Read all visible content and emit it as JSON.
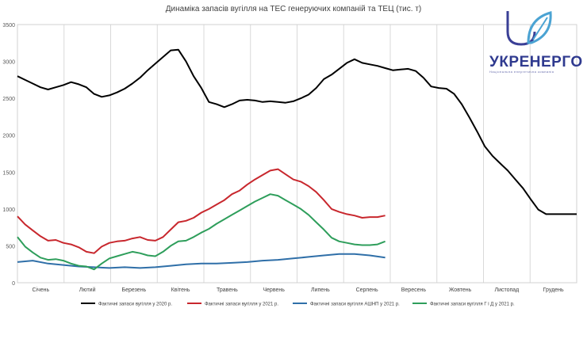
{
  "logo": {
    "brand": "УКРЕНЕРГО",
    "tagline": "Національна енергетична компанія"
  },
  "chart_data": {
    "type": "line",
    "title": "Динаміка запасів вугілля на ТЕС генеруючих компаній та ТЕЦ (тис. т)",
    "xlabel": "",
    "ylabel": "",
    "ylim": [
      0,
      3500
    ],
    "yticks": [
      0,
      500,
      1000,
      1500,
      2000,
      2500,
      3000,
      3500
    ],
    "xlim": [
      0,
      365
    ],
    "categories": [
      "Січень",
      "Лютий",
      "Березень",
      "Квітень",
      "Травень",
      "Червень",
      "Липень",
      "Серпень",
      "Вересень",
      "Жовтень",
      "Листопад",
      "Грудень"
    ],
    "legend_position": "bottom",
    "grid": "vertical",
    "series": [
      {
        "name": "Фактичні запаси вугілля у 2020 р.",
        "color": "#000000",
        "x": [
          0,
          5,
          10,
          15,
          20,
          25,
          30,
          35,
          40,
          45,
          50,
          55,
          60,
          65,
          70,
          75,
          80,
          85,
          90,
          95,
          100,
          105,
          110,
          115,
          120,
          125,
          130,
          135,
          140,
          145,
          150,
          155,
          160,
          165,
          170,
          175,
          180,
          185,
          190,
          195,
          200,
          205,
          210,
          215,
          220,
          225,
          230,
          235,
          240,
          245,
          250,
          255,
          260,
          265,
          270,
          275,
          280,
          285,
          290,
          295,
          300,
          305,
          310,
          315,
          320,
          325,
          330,
          335,
          340,
          345,
          350,
          355,
          360,
          365
        ],
        "values": [
          2800,
          2750,
          2700,
          2650,
          2620,
          2650,
          2680,
          2720,
          2690,
          2650,
          2560,
          2520,
          2540,
          2580,
          2630,
          2700,
          2780,
          2880,
          2970,
          3060,
          3150,
          3160,
          3000,
          2800,
          2640,
          2450,
          2420,
          2380,
          2420,
          2470,
          2480,
          2470,
          2450,
          2460,
          2450,
          2440,
          2460,
          2500,
          2550,
          2640,
          2760,
          2820,
          2900,
          2980,
          3030,
          2980,
          2960,
          2940,
          2910,
          2880,
          2890,
          2900,
          2870,
          2780,
          2660,
          2640,
          2630,
          2560,
          2420,
          2240,
          2050,
          1850,
          1720,
          1620,
          1520,
          1400,
          1280,
          1130,
          990,
          930,
          930,
          930,
          930,
          930
        ]
      },
      {
        "name": "Фактичні запаси вугілля у 2021 р.",
        "color": "#c8272d",
        "x": [
          0,
          5,
          10,
          15,
          20,
          25,
          30,
          35,
          40,
          45,
          50,
          55,
          60,
          65,
          70,
          75,
          80,
          85,
          90,
          95,
          100,
          105,
          110,
          115,
          120,
          125,
          130,
          135,
          140,
          145,
          150,
          155,
          160,
          165,
          170,
          175,
          180,
          185,
          190,
          195,
          200,
          205,
          210,
          215,
          220,
          225,
          230,
          235,
          240
        ],
        "values": [
          900,
          790,
          710,
          630,
          570,
          580,
          540,
          520,
          480,
          420,
          400,
          490,
          540,
          560,
          570,
          600,
          620,
          580,
          570,
          620,
          720,
          820,
          840,
          880,
          950,
          1000,
          1060,
          1120,
          1200,
          1250,
          1330,
          1400,
          1460,
          1520,
          1540,
          1470,
          1400,
          1370,
          1310,
          1230,
          1120,
          1000,
          960,
          930,
          910,
          880,
          890,
          890,
          910
        ]
      },
      {
        "name": "Фактичні запаси вугілля АШНП у 2021 р.",
        "color": "#2f6fa8",
        "x": [
          0,
          10,
          20,
          30,
          40,
          50,
          60,
          70,
          80,
          90,
          100,
          110,
          120,
          130,
          140,
          150,
          160,
          170,
          180,
          190,
          200,
          210,
          220,
          230,
          240
        ],
        "values": [
          280,
          300,
          260,
          240,
          220,
          210,
          200,
          210,
          200,
          210,
          230,
          250,
          260,
          260,
          270,
          280,
          300,
          310,
          330,
          350,
          370,
          390,
          390,
          370,
          340
        ]
      },
      {
        "name": "Фактичні запаси вугілля Г і Д у 2021 р.",
        "color": "#2e9e5b",
        "x": [
          0,
          5,
          10,
          15,
          20,
          25,
          30,
          35,
          40,
          45,
          50,
          55,
          60,
          65,
          70,
          75,
          80,
          85,
          90,
          95,
          100,
          105,
          110,
          115,
          120,
          125,
          130,
          135,
          140,
          145,
          150,
          155,
          160,
          165,
          170,
          175,
          180,
          185,
          190,
          195,
          200,
          205,
          210,
          215,
          220,
          225,
          230,
          235,
          240
        ],
        "values": [
          620,
          490,
          410,
          340,
          310,
          320,
          300,
          260,
          230,
          220,
          180,
          260,
          330,
          360,
          390,
          420,
          400,
          370,
          360,
          420,
          500,
          560,
          570,
          620,
          680,
          730,
          800,
          860,
          920,
          980,
          1040,
          1100,
          1150,
          1200,
          1180,
          1120,
          1060,
          1000,
          920,
          820,
          720,
          610,
          560,
          540,
          520,
          510,
          510,
          520,
          560
        ]
      }
    ]
  }
}
